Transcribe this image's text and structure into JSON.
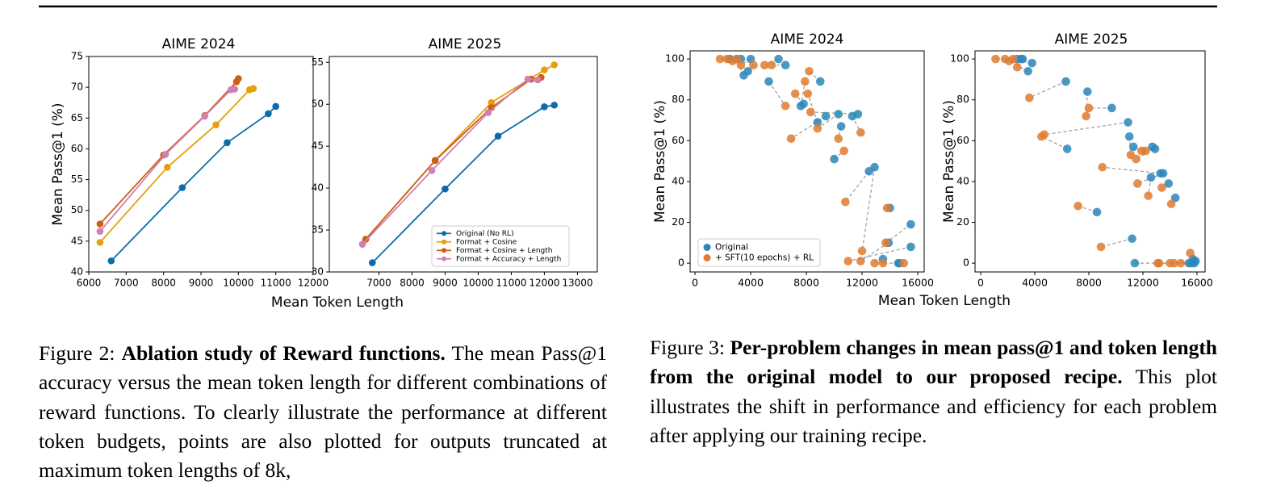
{
  "chart_data": [
    {
      "type": "line",
      "title": "AIME 2024",
      "ylabel": "Mean Pass@1 (%)",
      "xlabel": "Mean Token Length",
      "xlim": [
        6000,
        12000
      ],
      "xticks": [
        6000,
        7000,
        8000,
        9000,
        10000,
        11000,
        12000
      ],
      "ylim": [
        40,
        75
      ],
      "yticks": [
        40,
        45,
        50,
        55,
        60,
        65,
        70,
        75
      ],
      "series": [
        {
          "color": "#0a6cad",
          "x": [
            6600,
            8500,
            9700,
            10800,
            11000
          ],
          "values": [
            41.8,
            53.7,
            61,
            65.7,
            66.9
          ]
        },
        {
          "color": "#e5a00d",
          "x": [
            6300,
            8100,
            9400,
            10300,
            10400
          ],
          "values": [
            44.8,
            57,
            63.9,
            69.6,
            69.8
          ]
        },
        {
          "color": "#cc5f12",
          "x": [
            6300,
            8000,
            9100,
            9950,
            10000
          ],
          "values": [
            47.8,
            59,
            65.4,
            70.9,
            71.4
          ]
        },
        {
          "color": "#d17fb4",
          "x": [
            6300,
            8050,
            9100,
            9800,
            9900
          ],
          "values": [
            46.6,
            59.1,
            65.3,
            69.6,
            69.7
          ]
        }
      ]
    },
    {
      "type": "line",
      "title": "AIME 2025",
      "legend": "lower right",
      "xlim": [
        5500,
        13600
      ],
      "xticks": [
        7000,
        8000,
        9000,
        10000,
        11000,
        12000,
        13000
      ],
      "ylim": [
        30,
        55.7
      ],
      "yticks": [
        30,
        35,
        40,
        45,
        50,
        55
      ],
      "series": [
        {
          "name": "Original (No RL)",
          "color": "#0a6cad",
          "x": [
            6800,
            9000,
            10600,
            12000,
            12300
          ],
          "values": [
            31.1,
            39.9,
            46.2,
            49.7,
            49.9
          ]
        },
        {
          "name": "Format + Cosine",
          "color": "#e5a00d",
          "x": [
            6600,
            8700,
            10400,
            12000,
            12300
          ],
          "values": [
            33.9,
            43.3,
            50.2,
            54.1,
            54.7
          ]
        },
        {
          "name": "Format + Cosine + Length",
          "color": "#cc5f12",
          "x": [
            6600,
            8700,
            10400,
            11600,
            11900
          ],
          "values": [
            33.9,
            43.3,
            49.6,
            53,
            53.2
          ]
        },
        {
          "name": "Format + Accuracy + Length",
          "color": "#d17fb4",
          "x": [
            6500,
            8600,
            10300,
            11500,
            11800
          ],
          "values": [
            33.3,
            42.1,
            49,
            53,
            52.9
          ]
        }
      ]
    },
    {
      "type": "scatter",
      "title": "AIME 2024",
      "ylabel": "Mean Pass@1 (%)",
      "xlabel": "Mean Token Length",
      "legend": "lower left",
      "connect": true,
      "xlim": [
        -350,
        16460
      ],
      "xticks": [
        0,
        4000,
        8000,
        12000,
        16000
      ],
      "ylim": [
        -4.3,
        104
      ],
      "yticks": [
        0,
        20,
        40,
        60,
        80,
        100
      ],
      "series": [
        {
          "name": "Original",
          "color": "#2b87b8",
          "x": [
            2500,
            3000,
            3300,
            4000,
            3800,
            3500,
            6000,
            6500,
            5300,
            7800,
            9000,
            7600,
            8800,
            9400,
            10300,
            10500,
            11300,
            11700,
            10000,
            12500,
            12900,
            14000,
            15500,
            15500,
            14600,
            13500,
            14700,
            13900
          ],
          "values": [
            100,
            100,
            100,
            100,
            94,
            92,
            100,
            97,
            89,
            78,
            89,
            77,
            69,
            72,
            73,
            67,
            72,
            73,
            51,
            45,
            47,
            27,
            19,
            8,
            0,
            2,
            0,
            10
          ]
        },
        {
          "name": "+ SFT(10 epochs) + RL",
          "color": "#e07b30",
          "x": [
            1800,
            2300,
            2700,
            3300,
            4200,
            3000,
            5000,
            5500,
            6500,
            7200,
            8200,
            7900,
            8100,
            6900,
            8800,
            10300,
            11900,
            8300,
            10700,
            10800,
            12000,
            13800,
            13700,
            11000,
            13500,
            12900,
            15000,
            11900
          ],
          "values": [
            100,
            100,
            99,
            97,
            97,
            100,
            97,
            97,
            77,
            83,
            94,
            89,
            83,
            61,
            66,
            61,
            64,
            74,
            55,
            30,
            6,
            27,
            10,
            1,
            0,
            0,
            0,
            1
          ]
        }
      ]
    },
    {
      "type": "scatter",
      "title": "AIME 2025",
      "ylabel": "Mean Pass@1 (%)",
      "connect": true,
      "xlim": [
        -420,
        16600
      ],
      "xticks": [
        0,
        4000,
        8000,
        12000,
        16000
      ],
      "ylim": [
        -4.3,
        104
      ],
      "yticks": [
        0,
        20,
        40,
        60,
        80,
        100
      ],
      "series": [
        {
          "color": "#2b87b8",
          "x": [
            2700,
            3000,
            3800,
            3500,
            3100,
            6300,
            7900,
            9700,
            10900,
            6400,
            11000,
            11300,
            12700,
            12900,
            13300,
            13500,
            12600,
            13900,
            14400,
            8600,
            11200,
            15700,
            15800,
            11400,
            15600,
            15900,
            15400
          ],
          "values": [
            100,
            100,
            98,
            94,
            100,
            89,
            84,
            76,
            69,
            56,
            62,
            57,
            57,
            56,
            44,
            44,
            42,
            39,
            32,
            25,
            12,
            2,
            0,
            0,
            0,
            1,
            0
          ]
        },
        {
          "color": "#e07b30",
          "x": [
            1100,
            1800,
            2400,
            2100,
            2700,
            3600,
            7800,
            8000,
            4700,
            4500,
            11100,
            11900,
            12200,
            11500,
            9000,
            11600,
            12400,
            13400,
            14100,
            7200,
            8900,
            15500,
            13200,
            13100,
            14000,
            14300,
            14800
          ],
          "values": [
            100,
            100,
            100,
            99,
            96,
            81,
            72,
            76,
            63,
            62,
            53,
            55,
            55,
            51,
            47,
            39,
            33,
            37,
            29,
            28,
            8,
            5,
            0,
            0,
            0,
            0,
            0
          ]
        }
      ]
    }
  ],
  "captions": [
    {
      "label": "Figure 2:",
      "bold": "Ablation study of Reward functions.",
      "text": "The mean Pass@1 accuracy versus the mean token length for different combinations of reward functions. To clearly illustrate the performance at different token budgets, points are also plotted for outputs truncated at maximum token lengths of 8k,"
    },
    {
      "label": "Figure 3:",
      "bold": "Per-problem changes in mean pass@1 and token length from the original model to our proposed recipe.",
      "text": "This plot illustrates the shift in performance and efficiency for each problem after applying our training recipe."
    }
  ]
}
